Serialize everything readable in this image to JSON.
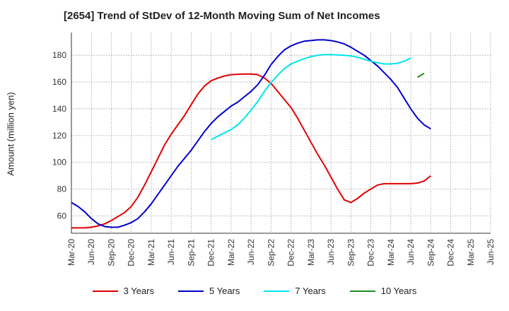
{
  "chart_data": {
    "type": "line",
    "title": "[2654]  Trend of StDev of 12-Month Moving Sum of Net Incomes",
    "xlabel": "",
    "ylabel": "Amount (million yen)",
    "ylim": [
      47,
      197
    ],
    "yticks": [
      60,
      80,
      100,
      120,
      140,
      160,
      180
    ],
    "xticks": [
      "Mar-20",
      "Jun-20",
      "Sep-20",
      "Dec-20",
      "Mar-21",
      "Jun-21",
      "Sep-21",
      "Dec-21",
      "Mar-22",
      "Jun-22",
      "Sep-22",
      "Dec-22",
      "Mar-23",
      "Jun-23",
      "Sep-23",
      "Dec-23",
      "Mar-24",
      "Jun-24",
      "Sep-24",
      "Dec-24",
      "Mar-25",
      "Jun-25"
    ],
    "grid": true,
    "legend_position": "bottom",
    "series": [
      {
        "name": "3 Years",
        "color": "#e00000",
        "start_index": 0,
        "values": [
          51,
          51,
          51,
          51.5,
          52.5,
          54,
          56.5,
          59.5,
          62.5,
          67,
          74,
          83,
          93,
          103,
          113,
          121,
          128,
          135,
          143,
          151,
          157,
          161,
          163,
          164.5,
          165.5,
          165.8,
          166,
          166,
          165.5,
          163,
          159,
          153,
          147,
          141,
          133,
          124,
          115,
          106,
          98,
          89,
          80,
          72,
          70,
          73,
          77,
          80,
          83,
          84,
          84,
          84,
          84,
          84,
          84.5,
          86,
          90
        ]
      },
      {
        "name": "5 Years",
        "color": "#0000cc",
        "start_index": 0,
        "values": [
          70,
          67,
          63,
          58,
          54,
          52,
          51.5,
          51.5,
          53,
          55,
          58,
          63,
          69,
          76,
          83,
          90,
          97,
          103,
          109,
          116,
          123,
          129,
          134,
          138,
          142,
          145,
          149,
          153,
          158,
          165,
          173,
          179,
          184,
          187,
          189,
          190.5,
          191,
          191.5,
          191.5,
          191,
          190,
          188.5,
          186,
          183,
          180,
          176,
          172,
          167,
          162,
          156,
          148,
          140,
          133,
          128,
          125
        ]
      },
      {
        "name": "7 Years",
        "color": "#00e5ee",
        "start_index": 21,
        "values": [
          117,
          119.5,
          122,
          124.5,
          128,
          133,
          139,
          145.5,
          153,
          159.5,
          165,
          170,
          173.5,
          175.5,
          177.5,
          179,
          180,
          180.5,
          180.5,
          180.3,
          180,
          179.5,
          178.5,
          177,
          175.5,
          174.5,
          173.5,
          173.5,
          174,
          175.5,
          178
        ]
      },
      {
        "name": "10 Years",
        "color": "#228b22",
        "start_index": 52,
        "values": [
          163.5,
          166.5
        ]
      }
    ]
  }
}
